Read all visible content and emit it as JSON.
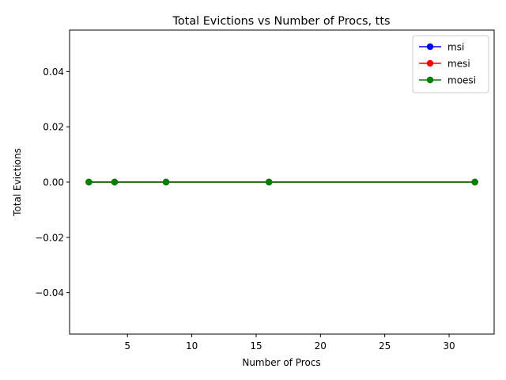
{
  "chart_data": {
    "type": "line",
    "title": "Total Evictions vs Number of Procs, tts",
    "xlabel": "Number of Procs",
    "ylabel": "Total Evictions",
    "xlim": [
      0.5,
      33.5
    ],
    "ylim": [
      -0.055,
      0.055
    ],
    "xticks": [
      5,
      10,
      15,
      20,
      25,
      30
    ],
    "yticks": [
      -0.04,
      -0.02,
      0.0,
      0.02,
      0.04
    ],
    "ytick_labels": [
      "−0.04",
      "−0.02",
      "0.00",
      "0.02",
      "0.04"
    ],
    "grid": false,
    "legend_position": "top-right",
    "x": [
      2,
      4,
      8,
      16,
      32
    ],
    "series": [
      {
        "name": "msi",
        "color": "#0000ff",
        "values": [
          0,
          0,
          0,
          0,
          0
        ]
      },
      {
        "name": "mesi",
        "color": "#ff0000",
        "values": [
          0,
          0,
          0,
          0,
          0
        ]
      },
      {
        "name": "moesi",
        "color": "#008000",
        "values": [
          0,
          0,
          0,
          0,
          0
        ]
      }
    ]
  }
}
